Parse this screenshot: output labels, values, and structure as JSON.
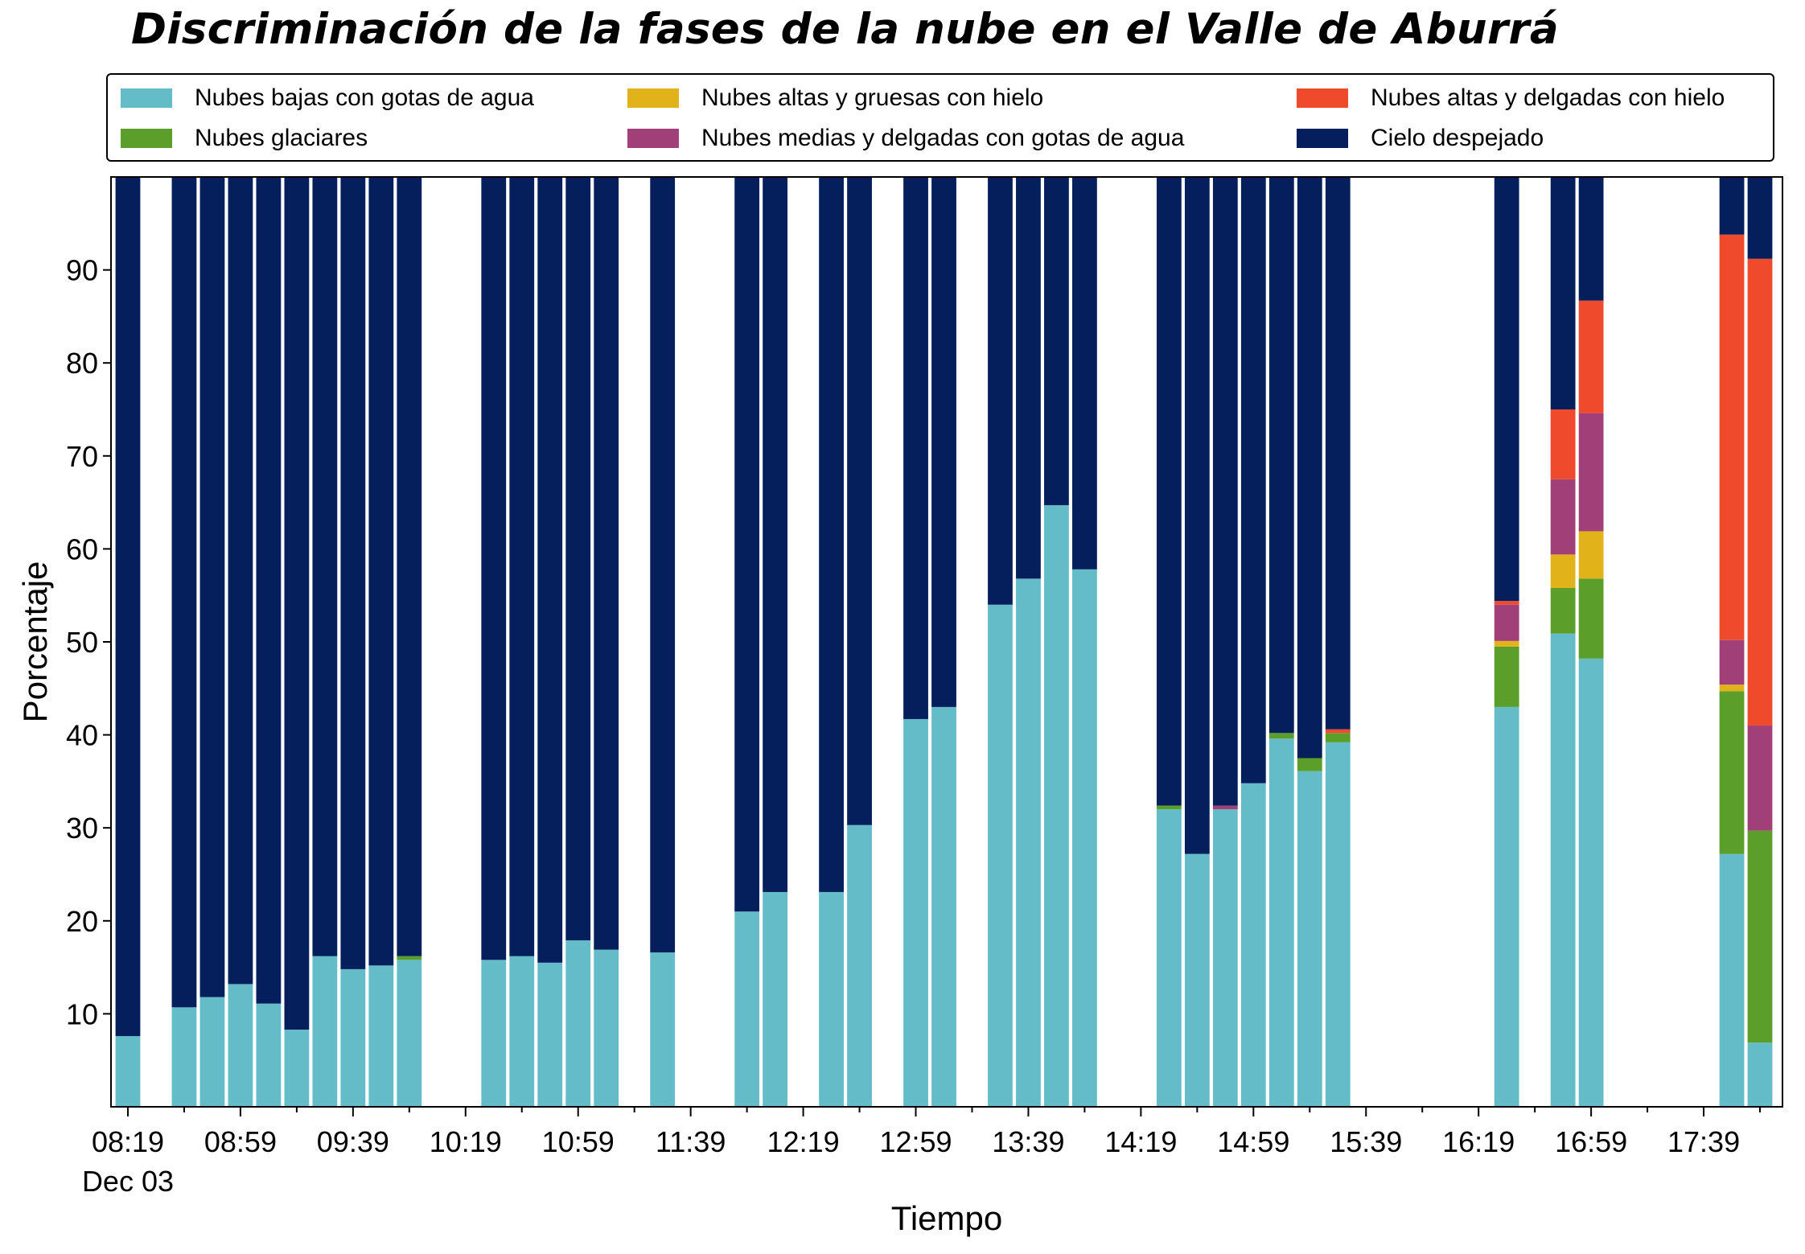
{
  "chart_data": {
    "type": "bar",
    "stacked": true,
    "title": "Discriminación de la fases de la nube en el Valle de Aburrá",
    "xlabel": "Tiempo",
    "ylabel": "Porcentaje",
    "ylim": [
      0,
      100
    ],
    "yticks": [
      10,
      20,
      30,
      40,
      50,
      60,
      70,
      80,
      90
    ],
    "x_range": [
      "08:13",
      "18:07"
    ],
    "x_tick_labels": [
      {
        "time": "08:19",
        "label": "08:19",
        "sublabel": "Dec 03"
      },
      {
        "time": "08:59",
        "label": "08:59"
      },
      {
        "time": "09:39",
        "label": "09:39"
      },
      {
        "time": "10:19",
        "label": "10:19"
      },
      {
        "time": "10:59",
        "label": "10:59"
      },
      {
        "time": "11:39",
        "label": "11:39"
      },
      {
        "time": "12:19",
        "label": "12:19"
      },
      {
        "time": "12:59",
        "label": "12:59"
      },
      {
        "time": "13:39",
        "label": "13:39"
      },
      {
        "time": "14:19",
        "label": "14:19"
      },
      {
        "time": "14:59",
        "label": "14:59"
      },
      {
        "time": "15:39",
        "label": "15:39"
      },
      {
        "time": "16:19",
        "label": "16:19"
      },
      {
        "time": "16:59",
        "label": "16:59"
      },
      {
        "time": "17:39",
        "label": "17:39"
      }
    ],
    "minor_tick_times": [
      "08:39",
      "09:19",
      "09:59",
      "10:39",
      "11:19",
      "11:59",
      "12:39",
      "13:19",
      "13:59",
      "14:39",
      "15:19",
      "15:59",
      "16:39",
      "17:19",
      "17:59"
    ],
    "legend_position": "top, outside plot (3 columns)",
    "grid": false,
    "series": [
      {
        "name": "Nubes bajas con gotas de agua",
        "color": "#64bcc8"
      },
      {
        "name": "Nubes glaciares",
        "color": "#5b9e2a"
      },
      {
        "name": "Nubes altas y gruesas con hielo",
        "color": "#e2b21b"
      },
      {
        "name": "Nubes medias y delgadas con gotas de agua",
        "color": "#a13f78"
      },
      {
        "name": "Nubes altas y delgadas con hielo",
        "color": "#ef4a2c"
      },
      {
        "name": "Cielo despejado",
        "color": "#041f5c"
      }
    ],
    "legend_layout": [
      [
        "Nubes bajas con gotas de agua",
        "Nubes glaciares"
      ],
      [
        "Nubes altas y gruesas con hielo",
        "Nubes medias y delgadas con gotas de agua"
      ],
      [
        "Nubes altas y delgadas con hielo",
        "Cielo despejado"
      ]
    ],
    "bars": [
      {
        "time": "08:19",
        "values": [
          7.6,
          0,
          0,
          0,
          0,
          92.4
        ]
      },
      {
        "time": "08:39",
        "values": [
          10.7,
          0,
          0,
          0,
          0,
          89.3
        ]
      },
      {
        "time": "08:49",
        "values": [
          11.8,
          0,
          0,
          0,
          0,
          88.2
        ]
      },
      {
        "time": "08:59",
        "values": [
          13.2,
          0,
          0,
          0,
          0,
          86.8
        ]
      },
      {
        "time": "09:09",
        "values": [
          11.1,
          0,
          0,
          0,
          0,
          88.9
        ]
      },
      {
        "time": "09:19",
        "values": [
          8.3,
          0,
          0,
          0,
          0,
          91.7
        ]
      },
      {
        "time": "09:29",
        "values": [
          16.2,
          0,
          0,
          0,
          0,
          83.8
        ]
      },
      {
        "time": "09:39",
        "values": [
          14.8,
          0,
          0,
          0,
          0,
          85.2
        ]
      },
      {
        "time": "09:49",
        "values": [
          15.2,
          0,
          0,
          0,
          0,
          84.8
        ]
      },
      {
        "time": "09:59",
        "values": [
          15.8,
          0.4,
          0,
          0,
          0,
          83.8
        ]
      },
      {
        "time": "10:29",
        "values": [
          15.8,
          0,
          0,
          0,
          0,
          84.2
        ]
      },
      {
        "time": "10:39",
        "values": [
          16.2,
          0,
          0,
          0,
          0,
          83.8
        ]
      },
      {
        "time": "10:49",
        "values": [
          15.5,
          0,
          0,
          0,
          0,
          84.5
        ]
      },
      {
        "time": "10:59",
        "values": [
          17.9,
          0,
          0,
          0,
          0,
          82.1
        ]
      },
      {
        "time": "11:09",
        "values": [
          16.9,
          0,
          0,
          0,
          0,
          83.1
        ]
      },
      {
        "time": "11:29",
        "values": [
          16.6,
          0,
          0,
          0,
          0,
          83.4
        ]
      },
      {
        "time": "11:59",
        "values": [
          21.0,
          0,
          0,
          0,
          0,
          79.0
        ]
      },
      {
        "time": "12:09",
        "values": [
          23.1,
          0,
          0,
          0,
          0,
          76.9
        ]
      },
      {
        "time": "12:29",
        "values": [
          23.1,
          0,
          0,
          0,
          0,
          76.9
        ]
      },
      {
        "time": "12:39",
        "values": [
          30.3,
          0,
          0,
          0,
          0,
          69.7
        ]
      },
      {
        "time": "12:59",
        "values": [
          41.7,
          0,
          0,
          0,
          0,
          58.3
        ]
      },
      {
        "time": "13:09",
        "values": [
          43.0,
          0,
          0,
          0,
          0,
          57.0
        ]
      },
      {
        "time": "13:29",
        "values": [
          54.0,
          0,
          0,
          0,
          0,
          46.0
        ]
      },
      {
        "time": "13:39",
        "values": [
          56.8,
          0,
          0,
          0,
          0,
          43.2
        ]
      },
      {
        "time": "13:49",
        "values": [
          64.7,
          0,
          0,
          0,
          0,
          35.3
        ]
      },
      {
        "time": "13:59",
        "values": [
          57.8,
          0,
          0,
          0,
          0,
          42.2
        ]
      },
      {
        "time": "14:29",
        "values": [
          32.0,
          0.4,
          0,
          0,
          0,
          67.6
        ]
      },
      {
        "time": "14:39",
        "values": [
          27.2,
          0,
          0,
          0,
          0,
          72.8
        ]
      },
      {
        "time": "14:49",
        "values": [
          32.0,
          0,
          0,
          0.4,
          0,
          67.6
        ]
      },
      {
        "time": "14:59",
        "values": [
          34.8,
          0,
          0,
          0,
          0,
          65.2
        ]
      },
      {
        "time": "15:09",
        "values": [
          39.6,
          0.6,
          0,
          0,
          0,
          59.8
        ]
      },
      {
        "time": "15:19",
        "values": [
          36.1,
          1.4,
          0,
          0,
          0,
          62.5
        ]
      },
      {
        "time": "15:29",
        "values": [
          39.2,
          1.0,
          0,
          0,
          0.4,
          59.4
        ]
      },
      {
        "time": "16:29",
        "values": [
          43.0,
          6.5,
          0.6,
          3.9,
          0.4,
          45.6
        ]
      },
      {
        "time": "16:49",
        "values": [
          50.9,
          4.9,
          3.6,
          8.1,
          7.5,
          25.0
        ]
      },
      {
        "time": "16:59",
        "values": [
          48.2,
          8.6,
          5.1,
          12.7,
          12.1,
          13.3
        ]
      },
      {
        "time": "17:49",
        "values": [
          27.2,
          17.5,
          0.7,
          4.8,
          43.6,
          6.2
        ]
      },
      {
        "time": "17:59",
        "values": [
          6.9,
          22.8,
          0,
          11.3,
          50.2,
          8.8
        ]
      }
    ]
  }
}
